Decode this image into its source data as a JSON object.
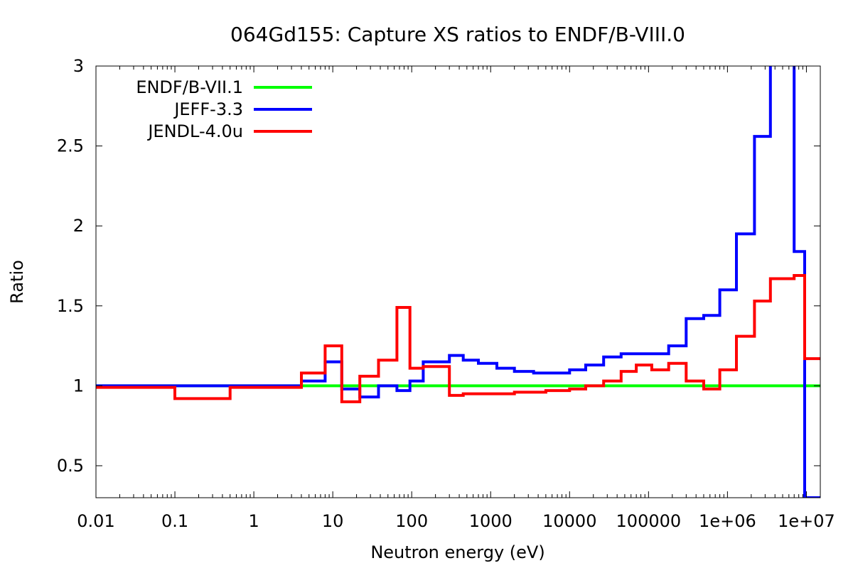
{
  "chart_data": {
    "type": "line",
    "title": "064Gd155: Capture XS ratios to ENDF/B-VIII.0",
    "xlabel": "Neutron energy (eV)",
    "ylabel": "Ratio",
    "x_scale": "log",
    "xlim": [
      0.01,
      15000000
    ],
    "ylim": [
      0.3,
      3
    ],
    "x_ticks": [
      0.01,
      0.1,
      1,
      10,
      100,
      1000,
      10000,
      100000,
      1000000,
      10000000
    ],
    "x_tick_labels": [
      "0.01",
      "0.1",
      "1",
      "10",
      "100",
      "1000",
      "10000",
      "100000",
      "1e+06",
      "1e+07"
    ],
    "y_ticks": [
      0.5,
      1,
      1.5,
      2,
      2.5,
      3
    ],
    "y_tick_labels": [
      "0.5",
      "1",
      "1.5",
      "2",
      "2.5",
      "3"
    ],
    "grid": false,
    "legend_position": "top-left",
    "series": [
      {
        "name": "ENDF/B-VII.1",
        "color": "#00ff00",
        "step": true,
        "x": [
          0.01,
          15000000
        ],
        "y": [
          1.0,
          1.0
        ]
      },
      {
        "name": "JEFF-3.3",
        "color": "#0000ff",
        "step": true,
        "x": [
          0.01,
          0.5,
          4,
          8,
          13,
          22,
          38,
          65,
          95,
          140,
          300,
          450,
          700,
          1200,
          2000,
          3500,
          6000,
          10000,
          16000,
          27000,
          45000,
          100000,
          180000,
          300000,
          500000,
          800000,
          1300000,
          2200000,
          3500000,
          7000000,
          9500000
        ],
        "y": [
          1.0,
          1.0,
          1.03,
          1.15,
          0.98,
          0.93,
          1.0,
          0.97,
          1.03,
          1.15,
          1.19,
          1.16,
          1.14,
          1.11,
          1.09,
          1.08,
          1.08,
          1.1,
          1.13,
          1.18,
          1.2,
          1.2,
          1.25,
          1.42,
          1.44,
          1.6,
          1.95,
          2.56,
          3.5,
          1.84,
          0.3
        ]
      },
      {
        "name": "JENDL-4.0u",
        "color": "#ff0000",
        "step": true,
        "x": [
          0.01,
          0.1,
          0.5,
          4,
          8,
          13,
          22,
          38,
          65,
          95,
          140,
          300,
          450,
          1000,
          2000,
          5000,
          10000,
          16000,
          27000,
          45000,
          70000,
          110000,
          180000,
          300000,
          500000,
          800000,
          1300000,
          2200000,
          3500000,
          7000000,
          9500000,
          15000000
        ],
        "y": [
          0.99,
          0.92,
          0.99,
          1.08,
          1.25,
          0.9,
          1.06,
          1.16,
          1.49,
          1.11,
          1.12,
          0.94,
          0.95,
          0.95,
          0.96,
          0.97,
          0.98,
          1.0,
          1.03,
          1.09,
          1.13,
          1.1,
          1.14,
          1.03,
          0.98,
          1.1,
          1.31,
          1.53,
          1.67,
          1.69,
          1.17,
          1.17
        ]
      }
    ]
  }
}
